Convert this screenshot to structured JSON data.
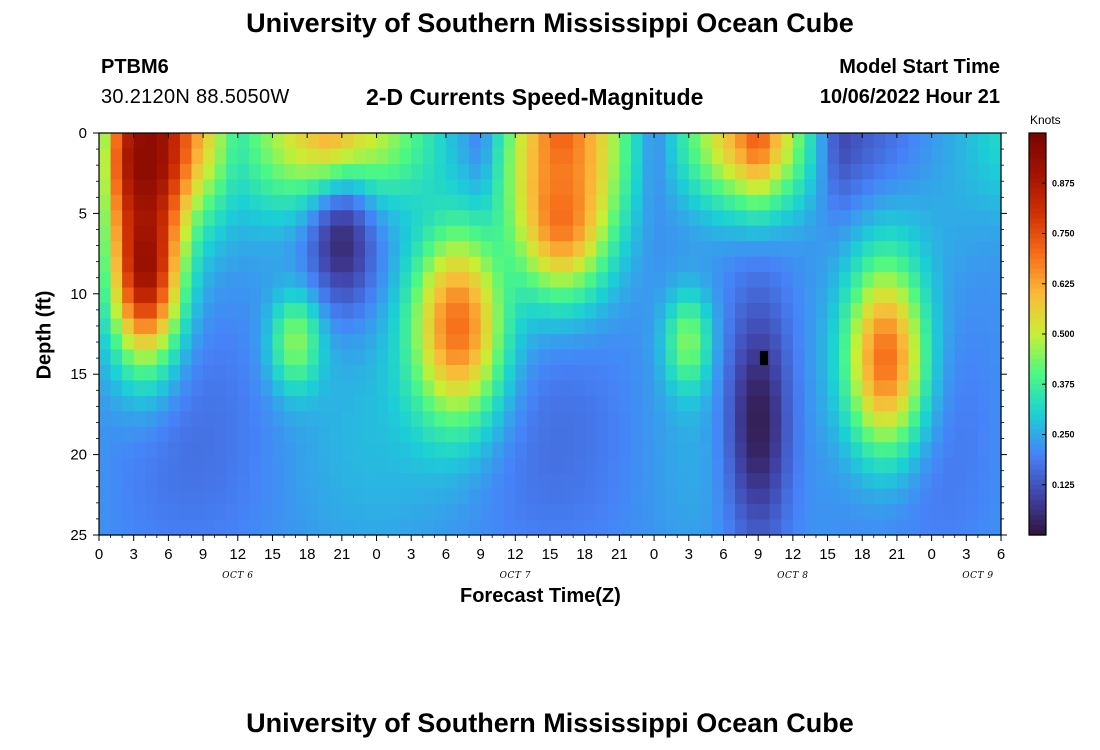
{
  "header": {
    "title": "University of Southern Mississippi Ocean Cube",
    "station": "PTBM6",
    "coordinates": "30.2120N  88.5050W",
    "subtitle": "2-D Currents Speed-Magnitude",
    "model_start_label": "Model Start Time",
    "model_start_value": "10/06/2022 Hour 21"
  },
  "footer": {
    "title": "University of Southern Mississippi Ocean Cube"
  },
  "chart_data": {
    "type": "heatmap",
    "title": "2-D Currents Speed-Magnitude",
    "xlabel": "Forecast Time(Z)",
    "ylabel": "Depth (ft)",
    "x_range_hours": [
      0,
      78
    ],
    "ylim": [
      0,
      25
    ],
    "x_tick_labels": [
      "0",
      "3",
      "6",
      "9",
      "12",
      "15",
      "18",
      "21",
      "0",
      "3",
      "6",
      "9",
      "12",
      "15",
      "18",
      "21",
      "0",
      "3",
      "6",
      "9",
      "12",
      "15",
      "18",
      "21",
      "0",
      "3",
      "6"
    ],
    "y_ticks": [
      0,
      5,
      10,
      15,
      20,
      25
    ],
    "date_labels": [
      {
        "hour": 12,
        "text": "OCT 6"
      },
      {
        "hour": 36,
        "text": "OCT 7"
      },
      {
        "hour": 60,
        "text": "OCT 8"
      },
      {
        "hour": 76,
        "text": "OCT 9"
      }
    ],
    "colorbar": {
      "unit": "Knots",
      "range": [
        0,
        1.0
      ],
      "ticks": [
        "0.125",
        "0.250",
        "0.375",
        "0.500",
        "0.625",
        "0.750",
        "0.875"
      ]
    },
    "anomalies": [
      {
        "time_hour": 57.5,
        "depth_ft": 14,
        "label": "data spike"
      }
    ],
    "surface_profile": [
      {
        "time_hour": 0,
        "speed_knots": 0.3
      },
      {
        "time_hour": 4,
        "speed_knots": 0.95
      },
      {
        "time_hour": 12,
        "speed_knots": 0.35
      },
      {
        "time_hour": 20,
        "speed_knots": 0.65
      },
      {
        "time_hour": 33,
        "speed_knots": 0.18
      },
      {
        "time_hour": 40,
        "speed_knots": 0.75
      },
      {
        "time_hour": 48,
        "speed_knots": 0.2
      },
      {
        "time_hour": 57,
        "speed_knots": 0.75
      },
      {
        "time_hour": 64,
        "speed_knots": 0.1
      },
      {
        "time_hour": 78,
        "speed_knots": 0.32
      }
    ],
    "model_fields": [
      {
        "time_hour": 4,
        "depth_ft": 8,
        "peak_knots": 0.93,
        "sigma_hours": 3,
        "sigma_ft": 6
      },
      {
        "time_hour": 4,
        "depth_ft": 2,
        "peak_knots": 0.95,
        "sigma_hours": 2.5,
        "sigma_ft": 4
      },
      {
        "time_hour": 21,
        "depth_ft": 7,
        "peak_knots": 0.05,
        "sigma_hours": 3,
        "sigma_ft": 4
      },
      {
        "time_hour": 17,
        "depth_ft": 13,
        "peak_knots": 0.45,
        "sigma_hours": 2.2,
        "sigma_ft": 3
      },
      {
        "time_hour": 31,
        "depth_ft": 12,
        "peak_knots": 0.7,
        "sigma_hours": 4,
        "sigma_ft": 6
      },
      {
        "time_hour": 40,
        "depth_ft": 5,
        "peak_knots": 0.7,
        "sigma_hours": 4,
        "sigma_ft": 5
      },
      {
        "time_hour": 51,
        "depth_ft": 13,
        "peak_knots": 0.45,
        "sigma_hours": 2,
        "sigma_ft": 3
      },
      {
        "time_hour": 57,
        "depth_ft": 18,
        "peak_knots": 0.02,
        "sigma_hours": 3,
        "sigma_ft": 8
      },
      {
        "time_hour": 68,
        "depth_ft": 14,
        "peak_knots": 0.7,
        "sigma_hours": 3.5,
        "sigma_ft": 6
      }
    ]
  }
}
